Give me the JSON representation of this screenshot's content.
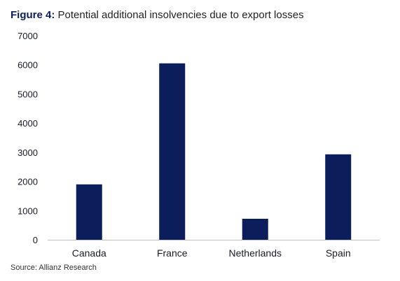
{
  "figure": {
    "prefix": "Figure 4:",
    "title": "Potential additional insolvencies due to export losses",
    "source": "Source: Allianz Research"
  },
  "chart_data": {
    "type": "bar",
    "categories": [
      "Canada",
      "France",
      "Netherlands",
      "Spain"
    ],
    "values": [
      1900,
      6050,
      720,
      2930
    ],
    "title": "Potential additional insolvencies due to export losses",
    "xlabel": "",
    "ylabel": "",
    "ylim": [
      0,
      7000
    ],
    "yticks": [
      0,
      1000,
      2000,
      3000,
      4000,
      5000,
      6000,
      7000
    ],
    "grid": false,
    "legend": "none",
    "bar_color": "#0b1e5b"
  }
}
